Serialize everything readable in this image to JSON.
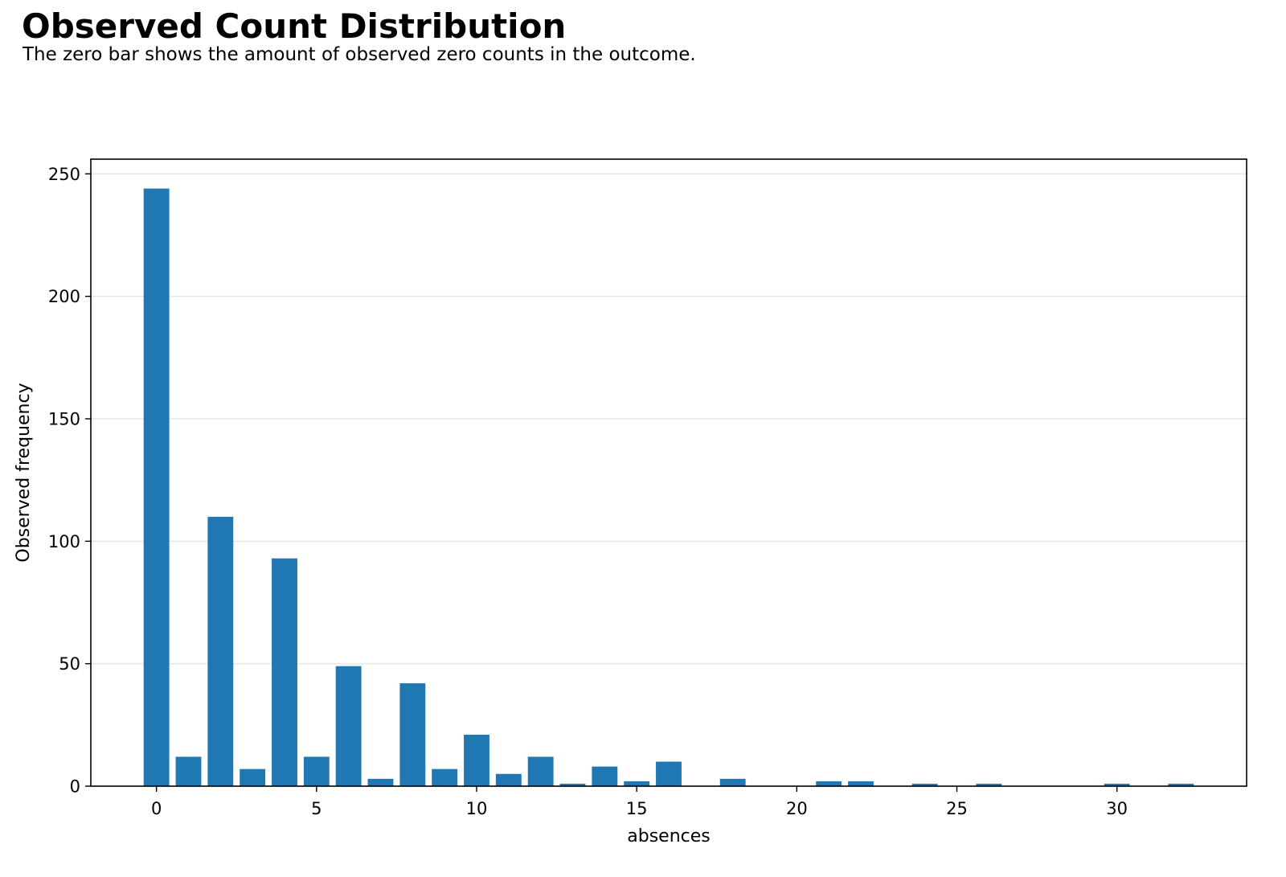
{
  "header": {
    "title": "Observed Count Distribution",
    "subtitle": "The zero bar shows the amount of observed zero counts in the outcome."
  },
  "chart_data": {
    "type": "bar",
    "title": "Observed Count Distribution",
    "subtitle": "The zero bar shows the amount of observed zero counts in the outcome.",
    "xlabel": "absences",
    "ylabel": "Observed frequency",
    "x": [
      0,
      1,
      2,
      3,
      4,
      5,
      6,
      7,
      8,
      9,
      10,
      11,
      12,
      13,
      14,
      15,
      16,
      18,
      21,
      22,
      24,
      26,
      30,
      32
    ],
    "values": [
      244,
      12,
      110,
      7,
      93,
      12,
      49,
      3,
      42,
      7,
      21,
      5,
      12,
      1,
      8,
      2,
      10,
      3,
      2,
      2,
      1,
      1,
      1,
      1
    ],
    "xlim": [
      -2.05,
      34.05
    ],
    "ylim": [
      0,
      256
    ],
    "xticks": [
      0,
      5,
      10,
      15,
      20,
      25,
      30
    ],
    "yticks": [
      0,
      50,
      100,
      150,
      200,
      250
    ],
    "grid": "horizontal",
    "legend": "none",
    "bar_color": "#1f77b4",
    "grid_color": "#e6e6e6"
  }
}
